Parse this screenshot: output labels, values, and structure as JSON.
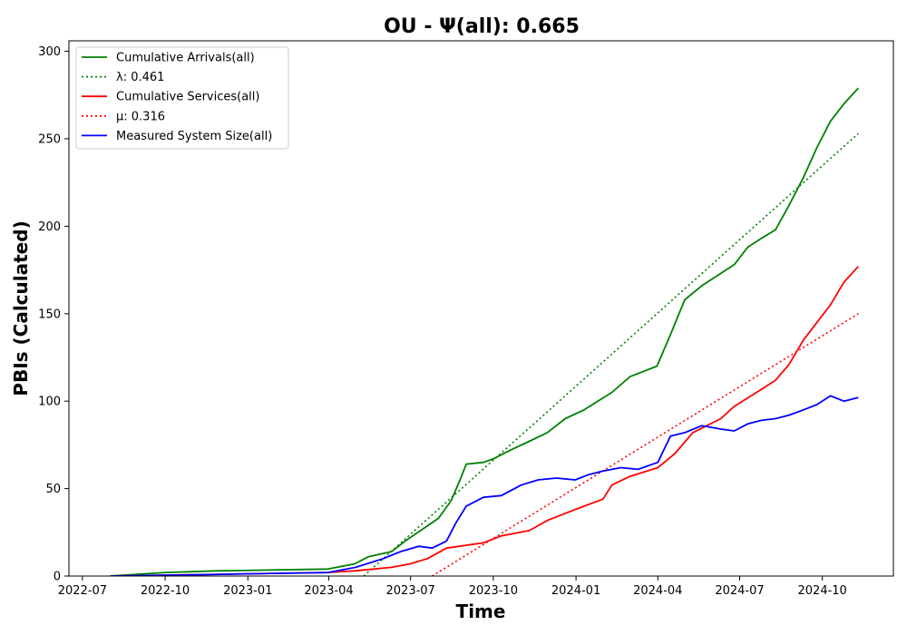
{
  "chart_data": {
    "type": "line",
    "title": "OU -  Ψ(all): 0.665",
    "xlabel": "Time",
    "ylabel": "PBIs (Calculated)",
    "x_ticks": [
      "2022-07",
      "2022-10",
      "2023-01",
      "2023-04",
      "2023-07",
      "2023-10",
      "2024-01",
      "2024-04",
      "2024-07",
      "2024-10"
    ],
    "y_ticks": [
      0,
      50,
      100,
      150,
      200,
      250,
      300
    ],
    "xlim": [
      "2022-06-16",
      "2024-12-19"
    ],
    "ylim": [
      0,
      306
    ],
    "grid": false,
    "legend_position": "top-left",
    "colors": {
      "green": "#008000",
      "red": "#ff0000",
      "blue": "#0000ff"
    },
    "series": [
      {
        "name": "Cumulative Arrivals(all)",
        "style": "solid",
        "color": "#008000",
        "x": [
          "2022-08-01",
          "2022-10-01",
          "2022-12-01",
          "2022-12-10",
          "2023-03-31",
          "2023-04-30",
          "2023-05-15",
          "2023-06-10",
          "2023-06-25",
          "2023-07-15",
          "2023-08-01",
          "2023-08-15",
          "2023-08-25",
          "2023-09-01",
          "2023-09-20",
          "2023-10-01",
          "2023-10-20",
          "2023-11-10",
          "2023-11-30",
          "2023-12-20",
          "2024-01-10",
          "2024-02-10",
          "2024-03-01",
          "2024-03-31",
          "2024-04-15",
          "2024-05-01",
          "2024-05-20",
          "2024-06-10",
          "2024-06-25",
          "2024-07-10",
          "2024-07-25",
          "2024-08-10",
          "2024-08-25",
          "2024-09-10",
          "2024-09-25",
          "2024-10-10",
          "2024-10-25",
          "2024-11-10"
        ],
        "y": [
          0,
          2,
          3,
          3,
          4,
          7,
          11,
          14,
          20,
          27,
          33,
          43,
          55,
          64,
          65,
          67,
          72,
          77,
          82,
          90,
          95,
          105,
          114,
          120,
          138,
          158,
          166,
          173,
          178,
          188,
          193,
          198,
          212,
          228,
          245,
          260,
          270,
          279
        ]
      },
      {
        "name": "λ: 0.461",
        "style": "dotted",
        "color": "#008000",
        "x": [
          "2023-05-10",
          "2024-11-10"
        ],
        "y": [
          0,
          253
        ]
      },
      {
        "name": "Cumulative Services(all)",
        "style": "solid",
        "color": "#ff0000",
        "x": [
          "2022-08-01",
          "2022-12-01",
          "2023-03-31",
          "2023-05-01",
          "2023-06-10",
          "2023-07-01",
          "2023-07-20",
          "2023-08-10",
          "2023-09-20",
          "2023-10-10",
          "2023-11-10",
          "2023-12-01",
          "2023-12-31",
          "2024-01-31",
          "2024-02-10",
          "2024-03-01",
          "2024-04-01",
          "2024-04-20",
          "2024-05-10",
          "2024-06-10",
          "2024-06-25",
          "2024-07-20",
          "2024-08-10",
          "2024-08-25",
          "2024-09-10",
          "2024-09-25",
          "2024-10-10",
          "2024-10-25",
          "2024-11-10"
        ],
        "y": [
          0,
          1,
          2,
          3,
          5,
          7,
          10,
          16,
          19,
          23,
          26,
          32,
          38,
          44,
          52,
          57,
          62,
          70,
          82,
          90,
          97,
          105,
          112,
          121,
          135,
          145,
          155,
          168,
          177
        ]
      },
      {
        "name": "μ: 0.316",
        "style": "dotted",
        "color": "#ff0000",
        "x": [
          "2023-07-25",
          "2024-11-10"
        ],
        "y": [
          0,
          150
        ]
      },
      {
        "name": "Measured System Size(all)",
        "style": "solid",
        "color": "#0000ff",
        "x": [
          "2022-08-01",
          "2022-12-01",
          "2023-03-31",
          "2023-05-01",
          "2023-06-01",
          "2023-06-20",
          "2023-07-10",
          "2023-07-25",
          "2023-08-10",
          "2023-08-20",
          "2023-09-01",
          "2023-09-20",
          "2023-10-10",
          "2023-11-01",
          "2023-11-20",
          "2023-12-10",
          "2023-12-31",
          "2024-01-15",
          "2024-01-31",
          "2024-02-20",
          "2024-03-10",
          "2024-04-01",
          "2024-04-15",
          "2024-05-01",
          "2024-05-20",
          "2024-06-10",
          "2024-06-25",
          "2024-07-10",
          "2024-07-25",
          "2024-08-10",
          "2024-08-25",
          "2024-09-10",
          "2024-09-25",
          "2024-10-10",
          "2024-10-25",
          "2024-11-10"
        ],
        "y": [
          0,
          1,
          2,
          5,
          10,
          14,
          17,
          16,
          20,
          30,
          40,
          45,
          46,
          52,
          55,
          56,
          55,
          58,
          60,
          62,
          61,
          65,
          80,
          82,
          86,
          84,
          83,
          87,
          89,
          90,
          92,
          95,
          98,
          103,
          100,
          102
        ]
      }
    ],
    "legend": [
      {
        "label": "Cumulative Arrivals(all)",
        "color": "#008000",
        "style": "solid"
      },
      {
        "label": "λ: 0.461",
        "color": "#008000",
        "style": "dotted"
      },
      {
        "label": "Cumulative Services(all)",
        "color": "#ff0000",
        "style": "solid"
      },
      {
        "label": "μ: 0.316",
        "color": "#ff0000",
        "style": "dotted"
      },
      {
        "label": "Measured System Size(all)",
        "color": "#0000ff",
        "style": "solid"
      }
    ]
  }
}
